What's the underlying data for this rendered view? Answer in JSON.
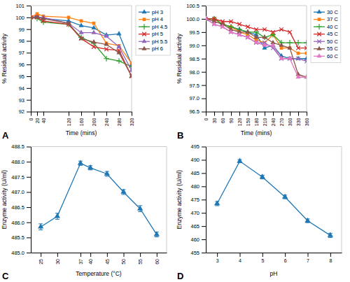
{
  "chart_data": [
    {
      "type": "line",
      "title": "A",
      "xlabel": "Time (mins)",
      "ylabel": "% Residual activity",
      "xlim": [
        0,
        320
      ],
      "ylim": [
        92,
        101
      ],
      "xticks": [
        0,
        20,
        40,
        120,
        160,
        200,
        240,
        280,
        320
      ],
      "yticks": [
        92,
        93,
        94,
        95,
        96,
        97,
        98,
        99,
        100,
        101
      ],
      "legend": "right",
      "x": [
        0,
        20,
        40,
        120,
        160,
        200,
        240,
        280,
        320
      ],
      "series": [
        {
          "name": "pH 3",
          "marker": "triangle",
          "values": [
            100.0,
            100.1,
            99.9,
            99.7,
            99.3,
            99.1,
            98.5,
            98.6,
            96.0
          ]
        },
        {
          "name": "pH 4",
          "marker": "square",
          "values": [
            100.0,
            100.3,
            100.1,
            100.0,
            99.7,
            99.5,
            97.8,
            97.6,
            96.1
          ]
        },
        {
          "name": "pH 4.5",
          "marker": "plus",
          "values": [
            100.0,
            99.9,
            99.6,
            99.4,
            98.3,
            97.8,
            96.5,
            96.3,
            95.8
          ]
        },
        {
          "name": "pH 5",
          "marker": "x",
          "values": [
            100.0,
            100.0,
            99.7,
            99.4,
            98.2,
            97.5,
            97.3,
            97.2,
            95.0
          ]
        },
        {
          "name": "pH 5.5",
          "marker": "triangle",
          "values": [
            100.0,
            100.0,
            100.0,
            99.5,
            98.7,
            98.7,
            98.4,
            97.5,
            95.5
          ]
        },
        {
          "name": "pH 6",
          "marker": "triangle",
          "values": [
            100.0,
            100.0,
            99.9,
            99.5,
            98.2,
            97.9,
            97.7,
            97.0,
            95.0
          ]
        }
      ]
    },
    {
      "type": "line",
      "title": "B",
      "xlabel": "Time (mins)",
      "ylabel": "% Residual activity",
      "xlim": [
        0,
        360
      ],
      "ylim": [
        96.5,
        100.5
      ],
      "xticks": [
        0,
        30,
        60,
        90,
        120,
        150,
        180,
        210,
        240,
        270,
        300,
        330,
        360
      ],
      "yticks": [
        96.5,
        {
          "value": 97.0,
          "label": "97.0"
        },
        97.5,
        {
          "value": 98.0,
          "label": "98.0"
        },
        98.5,
        {
          "value": 99.0,
          "label": "99.0"
        },
        99.5,
        {
          "value": 100.0,
          "label": "100.0"
        },
        100.5
      ],
      "legend": "right",
      "x": [
        0,
        30,
        60,
        90,
        120,
        150,
        180,
        210,
        240,
        270,
        300,
        330,
        360
      ],
      "series": [
        {
          "name": "30 C",
          "marker": "triangle",
          "values": [
            100.0,
            100.0,
            99.8,
            99.7,
            99.6,
            99.5,
            99.4,
            98.9,
            99.0,
            98.6,
            98.5,
            98.5,
            98.5
          ]
        },
        {
          "name": "37 C",
          "marker": "square",
          "values": [
            100.0,
            100.0,
            99.8,
            99.7,
            99.5,
            99.4,
            99.2,
            99.1,
            99.4,
            98.9,
            98.9,
            98.7,
            98.7
          ]
        },
        {
          "name": "40 C",
          "marker": "plus",
          "values": [
            100.0,
            100.0,
            99.8,
            99.7,
            99.6,
            99.5,
            99.5,
            99.3,
            99.4,
            99.1,
            99.1,
            99.1,
            99.1
          ]
        },
        {
          "name": "45 C",
          "marker": "x",
          "values": [
            100.0,
            100.0,
            99.9,
            99.9,
            99.8,
            99.7,
            99.6,
            99.6,
            99.5,
            99.6,
            99.5,
            98.9,
            98.9
          ]
        },
        {
          "name": "50 C",
          "marker": "x",
          "values": [
            100.0,
            99.8,
            99.7,
            99.5,
            99.4,
            99.3,
            99.1,
            99.1,
            98.9,
            98.5,
            98.5,
            98.5,
            98.4
          ]
        },
        {
          "name": "55 C",
          "marker": "triangle",
          "values": [
            100.0,
            99.9,
            99.8,
            99.6,
            99.5,
            99.5,
            99.3,
            99.3,
            99.1,
            99.0,
            98.9,
            97.9,
            97.8
          ]
        },
        {
          "name": "60 C",
          "marker": "triangle",
          "values": [
            100.0,
            99.8,
            99.7,
            99.5,
            99.4,
            99.3,
            99.1,
            99.0,
            99.0,
            98.5,
            98.5,
            97.8,
            97.8
          ]
        }
      ]
    },
    {
      "type": "line",
      "title": "C",
      "xlabel": "Temperature (°C)",
      "ylabel": "Enzyme activity (U/ml)",
      "xlim": [
        22,
        63
      ],
      "ylim": [
        485.0,
        488.5
      ],
      "xticks": [
        25,
        30,
        37,
        40,
        45,
        50,
        55,
        60
      ],
      "yticks": [
        {
          "value": 485.0,
          "label": "485.0"
        },
        485.5,
        {
          "value": 486.0,
          "label": "486.0"
        },
        486.5,
        {
          "value": 487.0,
          "label": "487.0"
        },
        487.5,
        {
          "value": 488.0,
          "label": "488.0"
        },
        488.5
      ],
      "marker": "triangle",
      "x": [
        25,
        30,
        37,
        40,
        45,
        50,
        55,
        60
      ],
      "values": [
        485.85,
        486.2,
        487.95,
        487.8,
        487.6,
        487.0,
        486.45,
        485.6
      ],
      "yerr": [
        0.1,
        0.1,
        0.07,
        0.07,
        0.08,
        0.08,
        0.1,
        0.08
      ]
    },
    {
      "type": "line",
      "title": "D",
      "xlabel": "pH",
      "ylabel": "Enzyme activity (U/ml)",
      "xlim": [
        2.5,
        8.5
      ],
      "ylim": [
        455,
        495
      ],
      "xticks": [
        3,
        4,
        5,
        6,
        7,
        8
      ],
      "yticks": [
        455,
        460,
        465,
        470,
        475,
        480,
        485,
        490,
        495
      ],
      "marker": "triangle",
      "x": [
        3,
        4,
        5,
        6,
        7,
        8
      ],
      "values": [
        473.5,
        489.5,
        483.5,
        476.0,
        467.0,
        461.5
      ],
      "yerr": [
        0.8,
        0.6,
        0.7,
        0.7,
        0.7,
        0.8
      ]
    }
  ]
}
